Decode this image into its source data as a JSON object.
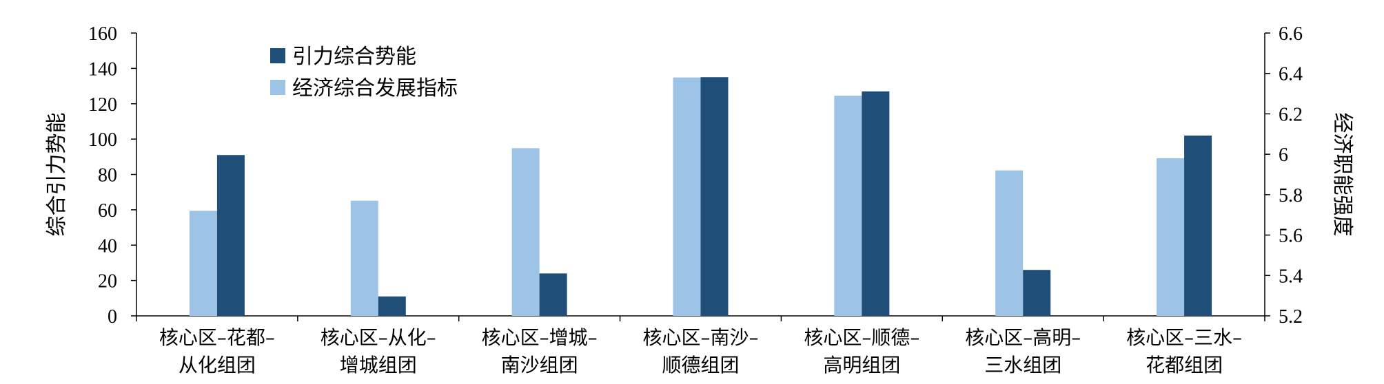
{
  "chart_data": {
    "type": "bar",
    "categories": [
      [
        "核心区–花都–",
        "从化组团"
      ],
      [
        "核心区–从化–",
        "增城组团"
      ],
      [
        "核心区–增城–",
        "南沙组团"
      ],
      [
        "核心区–南沙–",
        "顺德组团"
      ],
      [
        "核心区–顺德–",
        "高明组团"
      ],
      [
        "核心区–高明–",
        "三水组团"
      ],
      [
        "核心区–三水–",
        "花都组团"
      ]
    ],
    "series": [
      {
        "name": "经济综合发展指标",
        "axis": "right",
        "color": "#9dc3e6",
        "values": [
          5.72,
          5.77,
          6.03,
          6.38,
          6.29,
          5.92,
          5.98
        ]
      },
      {
        "name": "引力综合势能",
        "axis": "left",
        "color": "#1f4e79",
        "values": [
          91,
          11,
          24,
          135,
          127,
          26,
          102
        ]
      }
    ],
    "left_axis": {
      "label": "综合引力势能",
      "ylim": [
        0,
        160
      ],
      "ticks": [
        "0",
        "20",
        "40",
        "60",
        "80",
        "100",
        "120",
        "140",
        "160"
      ]
    },
    "right_axis": {
      "label": "经济职能强度",
      "ylim": [
        5.2,
        6.6
      ],
      "ticks": [
        "5.2",
        "5.4",
        "5.6",
        "5.8",
        "6",
        "6.2",
        "6.4",
        "6.6"
      ]
    },
    "legend": {
      "placement": "top-left",
      "entries": [
        {
          "label": "引力综合势能",
          "color": "#1f4e79"
        },
        {
          "label": "经济综合发展指标",
          "color": "#9dc3e6"
        }
      ]
    },
    "grid": false
  }
}
